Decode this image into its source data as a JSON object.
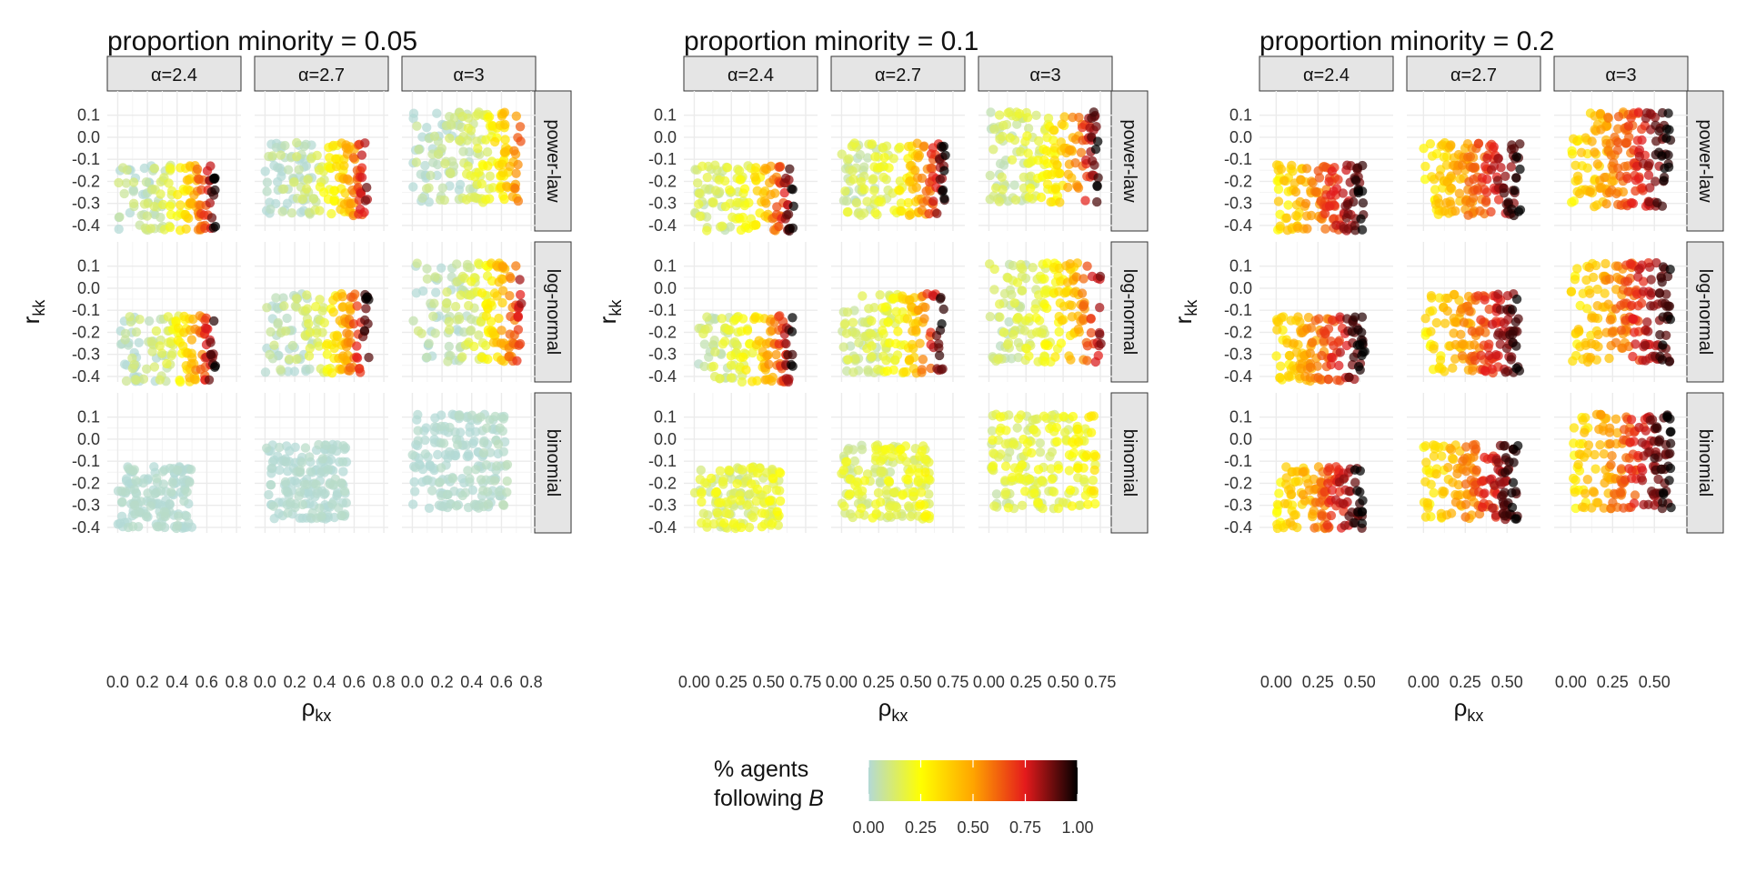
{
  "chart_data": {
    "type": "scatter",
    "layout": "3 figure groups, each a 3x3 facet grid (columns = alpha, rows = degree distribution)",
    "panel_titles": [
      "proportion minority = 0.05",
      "proportion minority = 0.1",
      "proportion minority = 0.2"
    ],
    "column_facets": [
      "α=2.4",
      "α=2.7",
      "α=3"
    ],
    "row_facets": [
      "power-law",
      "log-normal",
      "binomial"
    ],
    "y_axis": {
      "label": "r",
      "label_sub": "kk",
      "ticks": [
        "0.1",
        "0.0",
        "-0.1",
        "-0.2",
        "-0.3",
        "-0.4"
      ],
      "tick_values": [
        0.1,
        0.0,
        -0.1,
        -0.2,
        -0.3,
        -0.4
      ],
      "range": [
        -0.425,
        0.115
      ]
    },
    "x_axis": {
      "label": "ρ",
      "label_sub": "kx"
    },
    "groups": [
      {
        "minority": 0.05,
        "x_range": [
          -0.07,
          0.83
        ],
        "x_ticks": [
          "0.0",
          "0.2",
          "0.4",
          "0.6",
          "0.8"
        ],
        "x_tick_values": [
          0.0,
          0.2,
          0.4,
          0.6,
          0.8
        ]
      },
      {
        "minority": 0.1,
        "x_range": [
          -0.07,
          0.83
        ],
        "x_ticks": [
          "0.00",
          "0.25",
          "0.50",
          "0.75"
        ],
        "x_tick_values": [
          0.0,
          0.25,
          0.5,
          0.75
        ]
      },
      {
        "minority": 0.2,
        "x_range": [
          -0.1,
          0.7
        ],
        "x_ticks": [
          "0.00",
          "0.25",
          "0.50"
        ],
        "x_tick_values": [
          0.0,
          0.25,
          0.5
        ]
      }
    ],
    "facets": [
      {
        "group": 0,
        "row": 0,
        "col": 0,
        "rho_max": 0.66,
        "r_range": [
          -0.41,
          -0.14
        ],
        "n_levels": 6,
        "color_base": 0.02,
        "color_peak": 1.0
      },
      {
        "group": 0,
        "row": 0,
        "col": 1,
        "rho_max": 0.69,
        "r_range": [
          -0.34,
          -0.04
        ],
        "n_levels": 7,
        "color_base": 0.02,
        "color_peak": 0.85
      },
      {
        "group": 0,
        "row": 0,
        "col": 2,
        "rho_max": 0.73,
        "r_range": [
          -0.28,
          0.1
        ],
        "n_levels": 8,
        "color_base": 0.02,
        "color_peak": 0.6
      },
      {
        "group": 0,
        "row": 1,
        "col": 0,
        "rho_max": 0.66,
        "r_range": [
          -0.41,
          -0.14
        ],
        "n_levels": 6,
        "color_base": 0.02,
        "color_peak": 1.0
      },
      {
        "group": 0,
        "row": 1,
        "col": 1,
        "rho_max": 0.7,
        "r_range": [
          -0.37,
          -0.04
        ],
        "n_levels": 7,
        "color_base": 0.02,
        "color_peak": 1.0
      },
      {
        "group": 0,
        "row": 1,
        "col": 2,
        "rho_max": 0.74,
        "r_range": [
          -0.32,
          0.1
        ],
        "n_levels": 8,
        "color_base": 0.02,
        "color_peak": 0.8
      },
      {
        "group": 0,
        "row": 2,
        "col": 0,
        "rho_max": 0.5,
        "r_range": [
          -0.39,
          -0.14
        ],
        "n_levels": 6,
        "color_base": 0.0,
        "color_peak": 0.0
      },
      {
        "group": 0,
        "row": 2,
        "col": 1,
        "rho_max": 0.55,
        "r_range": [
          -0.35,
          -0.04
        ],
        "n_levels": 7,
        "color_base": 0.0,
        "color_peak": 0.0
      },
      {
        "group": 0,
        "row": 2,
        "col": 2,
        "rho_max": 0.64,
        "r_range": [
          -0.3,
          0.1
        ],
        "n_levels": 8,
        "color_base": 0.0,
        "color_peak": 0.02
      },
      {
        "group": 1,
        "row": 0,
        "col": 0,
        "rho_max": 0.67,
        "r_range": [
          -0.41,
          -0.14
        ],
        "n_levels": 6,
        "color_base": 0.1,
        "color_peak": 1.0
      },
      {
        "group": 1,
        "row": 0,
        "col": 1,
        "rho_max": 0.7,
        "r_range": [
          -0.34,
          -0.04
        ],
        "n_levels": 7,
        "color_base": 0.1,
        "color_peak": 1.0
      },
      {
        "group": 1,
        "row": 0,
        "col": 2,
        "rho_max": 0.74,
        "r_range": [
          -0.28,
          0.1
        ],
        "n_levels": 8,
        "color_base": 0.1,
        "color_peak": 1.0
      },
      {
        "group": 1,
        "row": 1,
        "col": 0,
        "rho_max": 0.67,
        "r_range": [
          -0.41,
          -0.14
        ],
        "n_levels": 6,
        "color_base": 0.1,
        "color_peak": 1.0
      },
      {
        "group": 1,
        "row": 1,
        "col": 1,
        "rho_max": 0.69,
        "r_range": [
          -0.37,
          -0.04
        ],
        "n_levels": 7,
        "color_base": 0.1,
        "color_peak": 1.0
      },
      {
        "group": 1,
        "row": 1,
        "col": 2,
        "rho_max": 0.76,
        "r_range": [
          -0.32,
          0.1
        ],
        "n_levels": 8,
        "color_base": 0.1,
        "color_peak": 0.9
      },
      {
        "group": 1,
        "row": 2,
        "col": 0,
        "rho_max": 0.58,
        "r_range": [
          -0.39,
          -0.14
        ],
        "n_levels": 6,
        "color_base": 0.14,
        "color_peak": 0.18
      },
      {
        "group": 1,
        "row": 2,
        "col": 1,
        "rho_max": 0.6,
        "r_range": [
          -0.35,
          -0.04
        ],
        "n_levels": 7,
        "color_base": 0.14,
        "color_peak": 0.2
      },
      {
        "group": 1,
        "row": 2,
        "col": 2,
        "rho_max": 0.72,
        "r_range": [
          -0.3,
          0.1
        ],
        "n_levels": 8,
        "color_base": 0.14,
        "color_peak": 0.26
      },
      {
        "group": 2,
        "row": 0,
        "col": 0,
        "rho_max": 0.53,
        "r_range": [
          -0.41,
          -0.14
        ],
        "n_levels": 6,
        "color_base": 0.32,
        "color_peak": 1.0
      },
      {
        "group": 2,
        "row": 0,
        "col": 1,
        "rho_max": 0.58,
        "r_range": [
          -0.34,
          -0.04
        ],
        "n_levels": 7,
        "color_base": 0.3,
        "color_peak": 1.0
      },
      {
        "group": 2,
        "row": 0,
        "col": 2,
        "rho_max": 0.6,
        "r_range": [
          -0.3,
          0.1
        ],
        "n_levels": 8,
        "color_base": 0.32,
        "color_peak": 1.0
      },
      {
        "group": 2,
        "row": 1,
        "col": 0,
        "rho_max": 0.53,
        "r_range": [
          -0.41,
          -0.14
        ],
        "n_levels": 6,
        "color_base": 0.32,
        "color_peak": 1.0
      },
      {
        "group": 2,
        "row": 1,
        "col": 1,
        "rho_max": 0.58,
        "r_range": [
          -0.37,
          -0.04
        ],
        "n_levels": 7,
        "color_base": 0.3,
        "color_peak": 1.0
      },
      {
        "group": 2,
        "row": 1,
        "col": 2,
        "rho_max": 0.6,
        "r_range": [
          -0.32,
          0.1
        ],
        "n_levels": 8,
        "color_base": 0.32,
        "color_peak": 1.0
      },
      {
        "group": 2,
        "row": 2,
        "col": 0,
        "rho_max": 0.52,
        "r_range": [
          -0.39,
          -0.14
        ],
        "n_levels": 6,
        "color_base": 0.3,
        "color_peak": 1.0
      },
      {
        "group": 2,
        "row": 2,
        "col": 1,
        "rho_max": 0.57,
        "r_range": [
          -0.35,
          -0.04
        ],
        "n_levels": 7,
        "color_base": 0.3,
        "color_peak": 1.0
      },
      {
        "group": 2,
        "row": 2,
        "col": 2,
        "rho_max": 0.6,
        "r_range": [
          -0.3,
          0.1
        ],
        "n_levels": 8,
        "color_base": 0.32,
        "color_peak": 1.0
      }
    ],
    "color_scale": {
      "title_line1": "% agents",
      "title_line2": "following",
      "title_var": "B",
      "ticks": [
        "0.00",
        "0.25",
        "0.50",
        "0.75",
        "1.00"
      ],
      "tick_values": [
        0,
        0.25,
        0.5,
        0.75,
        1.0
      ],
      "colors": [
        "#B3D9D6",
        "#FFFF00",
        "#FFA500",
        "#E41A1C",
        "#000000"
      ],
      "color_stops": [
        0,
        0.25,
        0.5,
        0.75,
        1.0
      ]
    },
    "grid": true,
    "legend_position": "bottom"
  },
  "style": {
    "strip_fill": "#e5e5e5",
    "strip_border": "#333333",
    "grid_major": "#ebebeb",
    "grid_minor": "#f4f4f4",
    "text": "#111111",
    "tick_text": "#333333"
  }
}
